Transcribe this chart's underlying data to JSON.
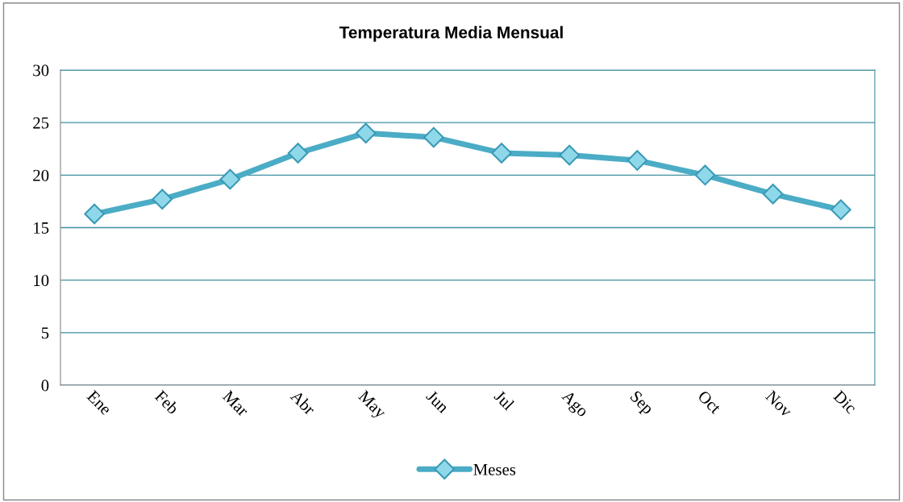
{
  "chart_data": {
    "type": "line",
    "title": "Temperatura Media Mensual",
    "categories": [
      "Ene",
      "Feb",
      "Mar",
      "Abr",
      "May",
      "Jun",
      "Jul",
      "Ago",
      "Sep",
      "Oct",
      "Nov",
      "Dic"
    ],
    "series": [
      {
        "name": "Meses",
        "color": "#4bacc6",
        "values": [
          16.3,
          17.7,
          19.6,
          22.1,
          24.0,
          23.6,
          22.1,
          21.9,
          21.4,
          20.0,
          18.2,
          16.7
        ]
      }
    ],
    "ylim": [
      0,
      30
    ],
    "yticks": [
      0,
      5,
      10,
      15,
      20,
      25,
      30
    ],
    "grid": "y",
    "legend": "bottom",
    "marker": "diamond",
    "line_style": "solid"
  }
}
